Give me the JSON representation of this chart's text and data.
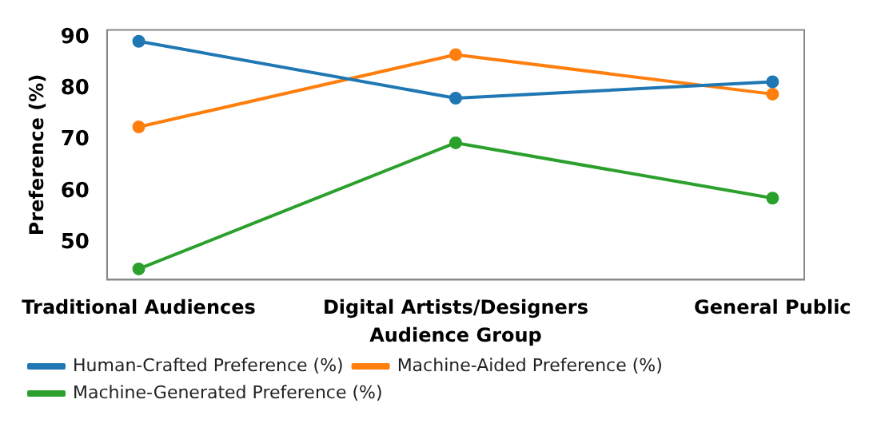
{
  "chart_data": {
    "type": "line",
    "xlabel": "Audience Group",
    "ylabel": "Preference (%)",
    "categories": [
      "Traditional Audiences",
      "Digital Artists/Designers",
      "General Public"
    ],
    "series": [
      {
        "name": "Human-Crafted Preference (%)",
        "color": "#1f77b4",
        "values": [
          89.3,
          78.2,
          81.4
        ]
      },
      {
        "name": "Machine-Aided Preference (%)",
        "color": "#ff7f0e",
        "values": [
          72.6,
          86.7,
          79.0
        ]
      },
      {
        "name": "Machine-Generated Preference (%)",
        "color": "#2ca02c",
        "values": [
          44.9,
          69.5,
          58.7
        ]
      }
    ],
    "ylim": [
      42.8,
      91.5
    ],
    "yticks": [
      50,
      60,
      70,
      80,
      90
    ],
    "grid": false,
    "legend": "bottom",
    "marker": "circle",
    "line_style": "solid"
  }
}
